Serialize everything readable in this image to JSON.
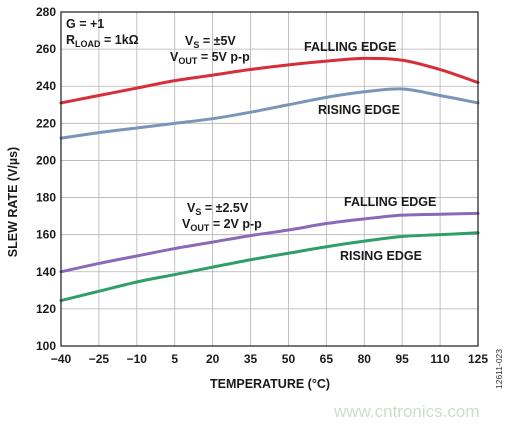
{
  "chart_data": {
    "type": "line",
    "xlabel": "TEMPERATURE (°C)",
    "ylabel": "SLEW RATE (V/µs)",
    "xlim": [
      -40,
      125
    ],
    "ylim": [
      100,
      280
    ],
    "x_ticks": [
      -40,
      -25,
      -10,
      5,
      20,
      35,
      50,
      65,
      80,
      95,
      110,
      125
    ],
    "y_ticks": [
      100,
      120,
      140,
      160,
      180,
      200,
      220,
      240,
      260,
      280
    ],
    "x_tick_labels": [
      "−40",
      "−25",
      "−10",
      "5",
      "20",
      "35",
      "50",
      "65",
      "80",
      "95",
      "110",
      "125"
    ],
    "y_tick_labels": [
      "100",
      "120",
      "140",
      "160",
      "180",
      "200",
      "220",
      "240",
      "260",
      "280"
    ],
    "grid": true,
    "series": [
      {
        "color": "#d62f3a",
        "x": [
          -40,
          -25,
          -10,
          5,
          20,
          35,
          50,
          65,
          80,
          95,
          110,
          125
        ],
        "y": [
          231,
          235,
          239,
          243,
          246,
          249,
          251.5,
          253.5,
          255,
          254,
          249,
          242
        ]
      },
      {
        "color": "#7a95b8",
        "x": [
          -40,
          -25,
          -10,
          5,
          20,
          35,
          50,
          65,
          80,
          95,
          110,
          125
        ],
        "y": [
          212,
          215,
          217.5,
          220,
          222.5,
          226,
          230,
          234,
          237,
          238.5,
          235,
          231
        ]
      },
      {
        "color": "#8c69b8",
        "x": [
          -40,
          -25,
          -10,
          5,
          20,
          35,
          50,
          65,
          80,
          95,
          110,
          125
        ],
        "y": [
          140,
          144.5,
          148.5,
          152.5,
          156,
          159.5,
          162.5,
          166,
          168.5,
          170.5,
          171,
          171.5
        ]
      },
      {
        "color": "#2f9e69",
        "x": [
          -40,
          -25,
          -10,
          5,
          20,
          35,
          50,
          65,
          80,
          95,
          110,
          125
        ],
        "y": [
          124.5,
          129.5,
          134.5,
          138.5,
          142.5,
          146.5,
          150,
          153.5,
          156.5,
          159,
          160,
          161
        ]
      }
    ],
    "annotations": {
      "gain": {
        "main": "G = +1"
      },
      "load": {
        "main": "R",
        "sub": "LOAD",
        "rest": " = 1kΩ"
      },
      "vs_5": {
        "main": "V",
        "sub": "S",
        "rest": " = ±5V"
      },
      "vout_5": {
        "main": "V",
        "sub": "OUT",
        "rest": " = 5V p-p"
      },
      "falling_5": "FALLING EDGE",
      "rising_5": "RISING EDGE",
      "vs_25": {
        "main": "V",
        "sub": "S",
        "rest": " = ±2.5V"
      },
      "vout_25": {
        "main": "V",
        "sub": "OUT",
        "rest": " = 2V p-p"
      },
      "falling_25": "FALLING EDGE",
      "rising_25": "RISING EDGE"
    }
  },
  "figure_id": "12611-023",
  "watermark": "www.cntronics.com"
}
